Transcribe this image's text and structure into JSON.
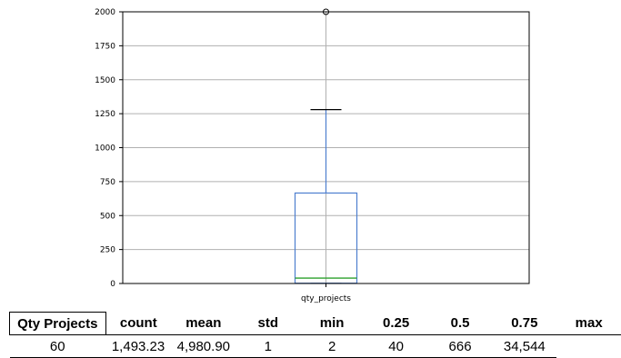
{
  "chart_data": {
    "type": "box",
    "categories": [
      "qty_projects"
    ],
    "series": [
      {
        "values": {
          "min": 1,
          "q1": 2,
          "median": 40,
          "q3": 666,
          "whisker_high": 1280,
          "outliers": [
            2000
          ]
        }
      }
    ],
    "ylim": [
      0,
      2000
    ],
    "yticks": [
      "0",
      "250",
      "500",
      "750",
      "1000",
      "1250",
      "1500",
      "1750",
      "2000"
    ],
    "ytick_values": [
      0,
      250,
      500,
      750,
      1000,
      1250,
      1500,
      1750,
      2000
    ],
    "grid": true,
    "colors": {
      "box": "#4e7fcf",
      "median": "#2ca02c",
      "whisker": "#4e7fcf",
      "cap": "#000000",
      "outlier": "#000000",
      "grid": "#b0b0b0"
    }
  },
  "stats_table": {
    "row_label": "Qty Projects",
    "headers": [
      "count",
      "mean",
      "std",
      "min",
      "0.25",
      "0.5",
      "0.75",
      "max"
    ],
    "values": [
      "60",
      "1,493.23",
      "4,980.90",
      "1",
      "2",
      "40",
      "666",
      "34,544"
    ]
  }
}
